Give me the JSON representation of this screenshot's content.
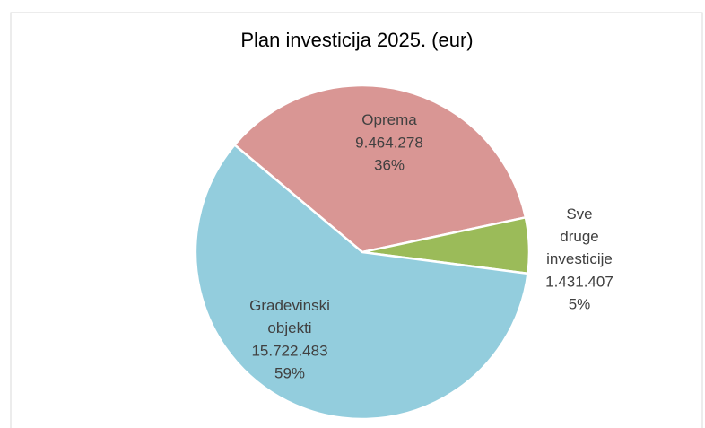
{
  "chart_data": {
    "type": "pie",
    "title": "Plan investicija 2025. (eur)",
    "categories": [
      "Oprema",
      "Sve druge investicije",
      "Građevinski objekti"
    ],
    "values": [
      9464278,
      1431407,
      15722483
    ],
    "value_labels": [
      "9.464.278",
      "1.431.407",
      "15.722.483"
    ],
    "percentages": [
      36,
      5,
      59
    ],
    "percentage_labels": [
      "36%",
      "5%",
      "59%"
    ],
    "colors": [
      "#d99694",
      "#9bbb59",
      "#93cddd"
    ]
  }
}
